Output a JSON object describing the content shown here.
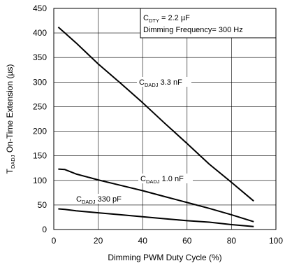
{
  "chart_data": {
    "type": "line",
    "xlabel": "Dimming PWM Duty Cycle (%)",
    "ylabel_main": "T",
    "ylabel_sub": "DADJ",
    "ylabel_rest": " On-Time Extension (µs)",
    "xlim": [
      0,
      100
    ],
    "ylim": [
      0,
      450
    ],
    "xticks": [
      0,
      20,
      40,
      60,
      80,
      100
    ],
    "yticks": [
      0,
      50,
      100,
      150,
      200,
      250,
      300,
      350,
      400,
      450
    ],
    "grid": true,
    "conditions": {
      "line1_prefix": "C",
      "line1_sub": "DTY",
      "line1_rest": " = 2.2 µF",
      "line2": "Dimming Frequency= 300 Hz"
    },
    "series": [
      {
        "label_prefix": "C",
        "label_sub": "DADJ",
        "label_rest": " 3.3 nF",
        "x": [
          2,
          5,
          10,
          20,
          30,
          40,
          50,
          60,
          70,
          80,
          90
        ],
        "y": [
          412,
          400,
          380,
          337,
          298,
          258,
          216,
          175,
          133,
          96,
          58
        ]
      },
      {
        "label_prefix": "C",
        "label_sub": "DADJ",
        "label_rest": " 1.0 nF",
        "x": [
          2,
          5,
          10,
          20,
          30,
          40,
          50,
          60,
          70,
          80,
          90
        ],
        "y": [
          123,
          122,
          113,
          101,
          90,
          79,
          67,
          55,
          43,
          30,
          16
        ]
      },
      {
        "label_prefix": "C",
        "label_sub": "DADJ",
        "label_rest": " 330 pF",
        "x": [
          2,
          5,
          10,
          20,
          30,
          40,
          50,
          60,
          70,
          80,
          90
        ],
        "y": [
          42,
          41,
          38,
          34,
          30,
          26,
          22,
          18,
          15,
          10,
          6
        ]
      }
    ]
  }
}
